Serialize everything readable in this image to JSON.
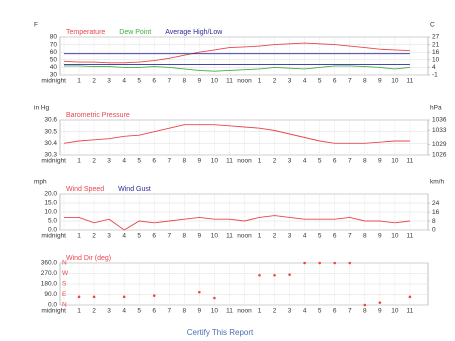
{
  "chart_data": [
    {
      "type": "line",
      "y_unit": "F",
      "y2_unit": "C",
      "categories": [
        "midnight",
        "1",
        "2",
        "3",
        "4",
        "5",
        "6",
        "7",
        "8",
        "9",
        "10",
        "11",
        "noon",
        "1",
        "2",
        "3",
        "4",
        "5",
        "6",
        "7",
        "8",
        "9",
        "10",
        "11"
      ],
      "ylim": [
        30,
        80
      ],
      "yticks": [
        30,
        40,
        50,
        60,
        70,
        80
      ],
      "y2lim": [
        -1.1,
        26.7
      ],
      "y2ticks": [
        {
          "value": -1.1,
          "label": "-1"
        },
        {
          "value": 4.4,
          "label": "4"
        },
        {
          "value": 10,
          "label": "10"
        },
        {
          "value": 15.6,
          "label": "16"
        },
        {
          "value": 21.1,
          "label": "21"
        },
        {
          "value": 26.7,
          "label": "27"
        }
      ],
      "series": [
        {
          "name": "Temperature",
          "color": "#e8474c",
          "values": [
            48,
            47,
            47,
            46,
            46,
            47,
            49,
            52,
            56,
            60,
            63,
            66,
            67,
            68,
            70,
            71,
            72,
            71,
            70,
            68,
            66,
            64,
            63,
            62
          ]
        },
        {
          "name": "Dew Point",
          "color": "#3cb043",
          "values": [
            42,
            42,
            41,
            41,
            40,
            40,
            41,
            40,
            38,
            36,
            35,
            36,
            37,
            38,
            40,
            39,
            38,
            40,
            42,
            42,
            41,
            40,
            38,
            40
          ]
        },
        {
          "name": "Average High/Low",
          "color": "#2b2b9c",
          "values": [
            58,
            58,
            58,
            58,
            58,
            58,
            58,
            58,
            58,
            58,
            58,
            58,
            58,
            58,
            58,
            58,
            58,
            58,
            58,
            58,
            58,
            58,
            58,
            58
          ],
          "low_values": [
            44,
            44,
            44,
            44,
            44,
            44,
            44,
            44,
            44,
            44,
            44,
            44,
            44,
            44,
            44,
            44,
            44,
            44,
            44,
            44,
            44,
            44,
            44,
            44
          ]
        }
      ]
    },
    {
      "type": "line",
      "y_unit": "in Hg",
      "y2_unit": "hPa",
      "categories": [
        "midnight",
        "1",
        "2",
        "3",
        "4",
        "5",
        "6",
        "7",
        "8",
        "9",
        "10",
        "11",
        "noon",
        "1",
        "2",
        "3",
        "4",
        "5",
        "6",
        "7",
        "8",
        "9",
        "10",
        "11"
      ],
      "ylim": [
        30.3,
        30.6
      ],
      "yticks": [
        30.3,
        30.4,
        30.5,
        30.6
      ],
      "y2lim": [
        1026,
        1036
      ],
      "y2ticks": [
        1026,
        1029,
        1033,
        1036
      ],
      "series": [
        {
          "name": "Barometric Pressure",
          "color": "#e8474c",
          "values": [
            30.4,
            30.42,
            30.43,
            30.44,
            30.46,
            30.47,
            30.5,
            30.53,
            30.56,
            30.56,
            30.56,
            30.55,
            30.54,
            30.53,
            30.51,
            30.48,
            30.45,
            30.42,
            30.4,
            30.4,
            30.4,
            30.41,
            30.42,
            30.42
          ]
        }
      ]
    },
    {
      "type": "line",
      "y_unit": "mph",
      "y2_unit": "km/h",
      "categories": [
        "midnight",
        "1",
        "2",
        "3",
        "4",
        "5",
        "6",
        "7",
        "8",
        "9",
        "10",
        "11",
        "noon",
        "1",
        "2",
        "3",
        "4",
        "5",
        "6",
        "7",
        "8",
        "9",
        "10",
        "11"
      ],
      "ylim": [
        0,
        20
      ],
      "yticks": [
        {
          "value": 0,
          "label": "0.0"
        },
        {
          "value": 5,
          "label": "5.0"
        },
        {
          "value": 10,
          "label": "10.0"
        },
        {
          "value": 15,
          "label": "15.0"
        },
        {
          "value": 20,
          "label": "20.0"
        }
      ],
      "y2lim": [
        0,
        32.2
      ],
      "y2ticks": [
        0,
        8,
        16,
        24
      ],
      "series": [
        {
          "name": "Wind Speed",
          "color": "#e8474c",
          "values": [
            7,
            7,
            4,
            6,
            0,
            5,
            4,
            5,
            6,
            7,
            6,
            6,
            5,
            7,
            8,
            7,
            6,
            6,
            6,
            7,
            5,
            5,
            4,
            5
          ]
        },
        {
          "name": "Wind Gust",
          "color": "#2b2b9c",
          "values": [
            null,
            null,
            null,
            null,
            null,
            null,
            null,
            null,
            null,
            null,
            null,
            null,
            null,
            null,
            null,
            null,
            null,
            null,
            null,
            null,
            null,
            null,
            null,
            null
          ]
        }
      ]
    },
    {
      "type": "scatter",
      "categories": [
        "midnight",
        "1",
        "2",
        "3",
        "4",
        "5",
        "6",
        "7",
        "8",
        "9",
        "10",
        "11",
        "noon",
        "1",
        "2",
        "3",
        "4",
        "5",
        "6",
        "7",
        "8",
        "9",
        "10",
        "11"
      ],
      "ylim": [
        0,
        360
      ],
      "yticks": [
        {
          "value": 0,
          "label": "0.0"
        },
        {
          "value": 90,
          "label": "90.0"
        },
        {
          "value": 180,
          "label": "180.0"
        },
        {
          "value": 270,
          "label": "270.0"
        },
        {
          "value": 360,
          "label": "360.0"
        }
      ],
      "direction_ticks": [
        {
          "value": 0,
          "label": "N"
        },
        {
          "value": 90,
          "label": "E"
        },
        {
          "value": 180,
          "label": "S"
        },
        {
          "value": 270,
          "label": "W"
        },
        {
          "value": 360,
          "label": "N"
        }
      ],
      "series": [
        {
          "name": "Wind Dir (deg)",
          "color": "#e8474c",
          "values": [
            null,
            70,
            70,
            null,
            70,
            null,
            80,
            null,
            null,
            110,
            60,
            null,
            null,
            255,
            255,
            260,
            360,
            360,
            360,
            360,
            0,
            20,
            null,
            70
          ]
        }
      ]
    }
  ],
  "footer": {
    "link": "Certify This Report"
  }
}
